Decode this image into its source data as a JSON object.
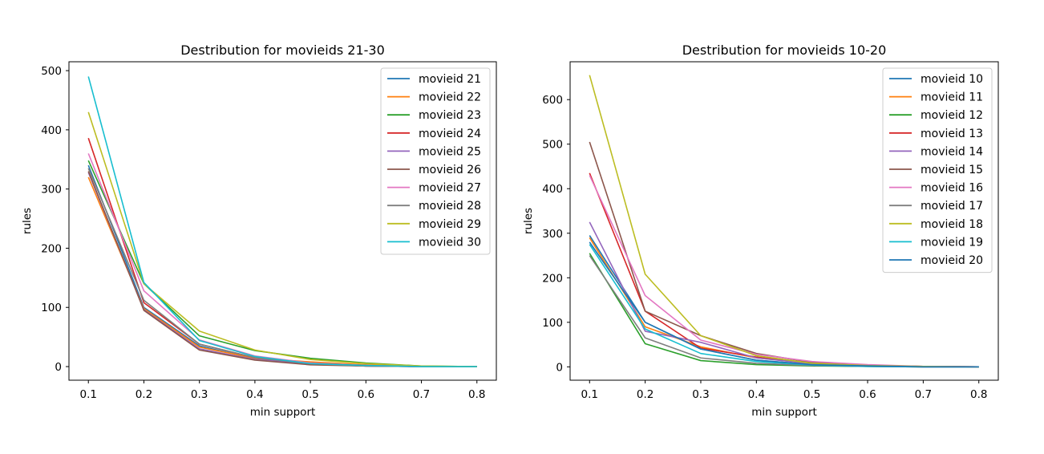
{
  "chart_data": [
    {
      "type": "line",
      "title": "Destribution for movieids 21-30",
      "xlabel": "min support",
      "ylabel": "rules",
      "x": [
        0.1,
        0.2,
        0.3,
        0.4,
        0.5,
        0.6,
        0.7,
        0.8
      ],
      "xticks": [
        "0.1",
        "0.2",
        "0.3",
        "0.4",
        "0.5",
        "0.6",
        "0.7",
        "0.8"
      ],
      "xlim": [
        0.065,
        0.835
      ],
      "yticks": [
        "0",
        "100",
        "200",
        "300",
        "400",
        "500"
      ],
      "ylim": [
        -23,
        515
      ],
      "legend_position": "upper right",
      "series": [
        {
          "name": "movieid 21",
          "color": "#1f77b4",
          "values": [
            340,
            100,
            35,
            13,
            4,
            1,
            0,
            0
          ]
        },
        {
          "name": "movieid 22",
          "color": "#ff7f0e",
          "values": [
            320,
            98,
            33,
            14,
            8,
            3,
            0,
            0
          ]
        },
        {
          "name": "movieid 23",
          "color": "#2ca02c",
          "values": [
            348,
            140,
            52,
            27,
            14,
            6,
            1,
            0
          ]
        },
        {
          "name": "movieid 24",
          "color": "#d62728",
          "values": [
            386,
            108,
            38,
            15,
            6,
            2,
            0,
            0
          ]
        },
        {
          "name": "movieid 25",
          "color": "#9467bd",
          "values": [
            328,
            96,
            30,
            12,
            5,
            1,
            0,
            0
          ]
        },
        {
          "name": "movieid 26",
          "color": "#8c564b",
          "values": [
            330,
            95,
            28,
            11,
            3,
            1,
            0,
            0
          ]
        },
        {
          "name": "movieid 27",
          "color": "#e377c2",
          "values": [
            360,
            128,
            45,
            18,
            6,
            2,
            0,
            0
          ]
        },
        {
          "name": "movieid 28",
          "color": "#7f7f7f",
          "values": [
            335,
            112,
            38,
            15,
            5,
            1,
            0,
            0
          ]
        },
        {
          "name": "movieid 29",
          "color": "#bcbd22",
          "values": [
            430,
            140,
            60,
            28,
            12,
            5,
            1,
            0
          ]
        },
        {
          "name": "movieid 30",
          "color": "#17becf",
          "values": [
            490,
            142,
            44,
            17,
            5,
            2,
            0,
            0
          ]
        }
      ]
    },
    {
      "type": "line",
      "title": "Destribution for movieids 10-20",
      "xlabel": "min support",
      "ylabel": "rules",
      "x": [
        0.1,
        0.2,
        0.3,
        0.4,
        0.5,
        0.6,
        0.7,
        0.8
      ],
      "xticks": [
        "0.1",
        "0.2",
        "0.3",
        "0.4",
        "0.5",
        "0.6",
        "0.7",
        "0.8"
      ],
      "xlim": [
        0.065,
        0.835
      ],
      "yticks": [
        "0",
        "100",
        "200",
        "300",
        "400",
        "500",
        "600"
      ],
      "ylim": [
        -30,
        685
      ],
      "legend_position": "upper right",
      "series": [
        {
          "name": "movieid 10",
          "color": "#1f77b4",
          "values": [
            295,
            100,
            40,
            15,
            5,
            2,
            0,
            0
          ]
        },
        {
          "name": "movieid 11",
          "color": "#ff7f0e",
          "values": [
            290,
            90,
            45,
            20,
            8,
            3,
            1,
            0
          ]
        },
        {
          "name": "movieid 12",
          "color": "#2ca02c",
          "values": [
            255,
            52,
            14,
            5,
            2,
            1,
            0,
            0
          ]
        },
        {
          "name": "movieid 13",
          "color": "#d62728",
          "values": [
            435,
            125,
            42,
            22,
            8,
            3,
            1,
            0
          ]
        },
        {
          "name": "movieid 14",
          "color": "#9467bd",
          "values": [
            325,
            80,
            55,
            20,
            7,
            2,
            0,
            0
          ]
        },
        {
          "name": "movieid 15",
          "color": "#8c564b",
          "values": [
            505,
            125,
            70,
            30,
            10,
            3,
            1,
            0
          ]
        },
        {
          "name": "movieid 16",
          "color": "#e377c2",
          "values": [
            430,
            160,
            60,
            28,
            12,
            5,
            1,
            0
          ]
        },
        {
          "name": "movieid 17",
          "color": "#7f7f7f",
          "values": [
            250,
            65,
            20,
            8,
            3,
            1,
            0,
            0
          ]
        },
        {
          "name": "movieid 18",
          "color": "#bcbd22",
          "values": [
            655,
            208,
            70,
            25,
            8,
            3,
            1,
            0
          ]
        },
        {
          "name": "movieid 19",
          "color": "#17becf",
          "values": [
            275,
            85,
            30,
            12,
            4,
            1,
            0,
            0
          ]
        },
        {
          "name": "movieid 20",
          "color": "#1f77b4",
          "values": [
            280,
            100,
            40,
            15,
            5,
            2,
            0,
            0
          ]
        }
      ]
    }
  ]
}
